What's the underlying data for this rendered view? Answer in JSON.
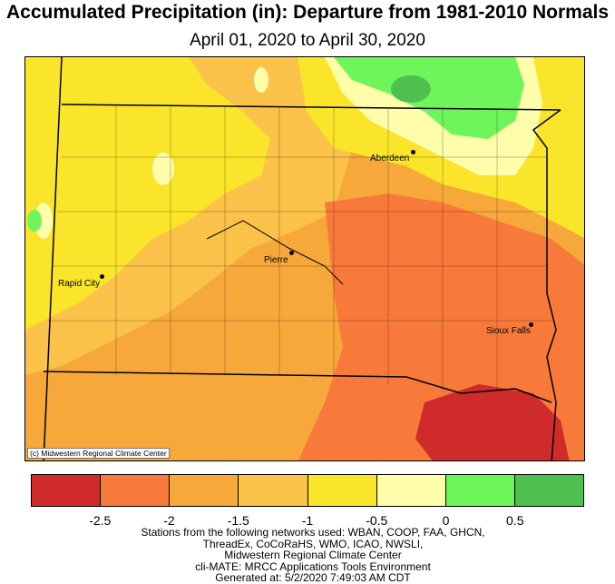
{
  "title": "Accumulated Precipitation (in): Departure from 1981-2010 Normals",
  "subtitle": "April 01, 2020 to April 30, 2020",
  "cities": [
    {
      "name": "Aberdeen"
    },
    {
      "name": "Pierre"
    },
    {
      "name": "Rapid City"
    },
    {
      "name": "Sioux Falls"
    }
  ],
  "credit": "(c) Midwestern Regional Climate Center",
  "legend": {
    "colors": [
      "#d02b2b",
      "#f77a3a",
      "#f7a83a",
      "#fbc24a",
      "#fbe52a",
      "#fdfdaa",
      "#6ef55a",
      "#4fbf4f"
    ],
    "ticks": [
      "-2.5",
      "-2",
      "-1.5",
      "-1",
      "-0.5",
      "0",
      "0.5"
    ]
  },
  "footer": [
    "Stations from the following networks used: WBAN, COOP, FAA, GHCN,",
    "ThreadEx, CoCoRaHS, WMO, ICAO, NWSLI,",
    "Midwestern Regional Climate Center",
    "cli-MATE: MRCC Applications Tools Environment",
    "Generated at: 5/2/2020 7:49:03 AM CDT"
  ]
}
